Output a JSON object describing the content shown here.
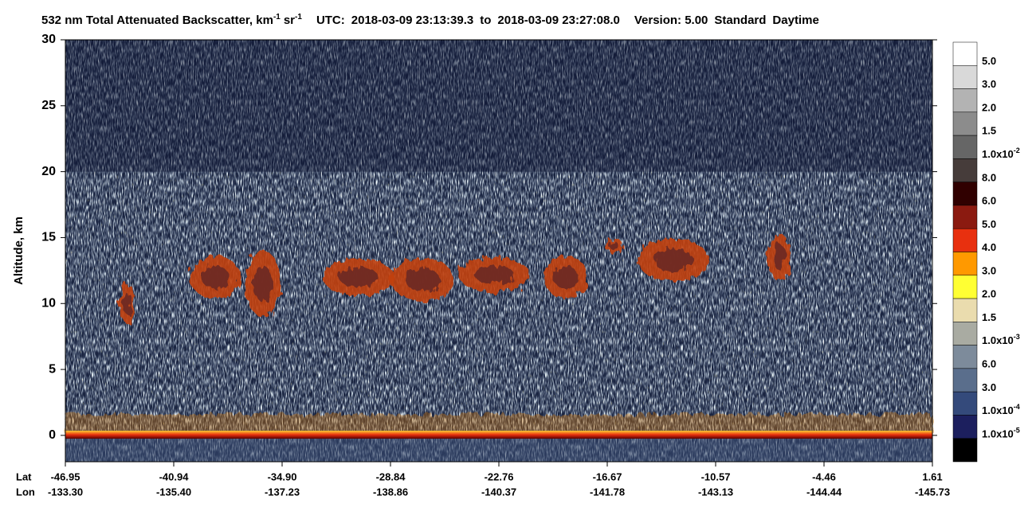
{
  "chart_data": {
    "type": "heatmap",
    "title": {
      "main": "532 nm Total Attenuated Backscatter, km",
      "exp1": "-1",
      "unit": "sr",
      "exp2": "-1",
      "utc_label": "UTC:",
      "start": "2018-03-09 23:13:39.3",
      "to": "to",
      "end": "2018-03-09 23:27:08.0",
      "version": "Version: 5.00",
      "mode": "Standard",
      "light": "Daytime"
    },
    "ylabel": "Altitude, km",
    "ylim": [
      -2,
      30
    ],
    "yticks": [
      0,
      5,
      10,
      15,
      20,
      25,
      30
    ],
    "x_row_labels": [
      "Lat",
      "Lon"
    ],
    "lat": [
      "-46.95",
      "-40.94",
      "-34.90",
      "-28.84",
      "-22.76",
      "-16.67",
      "-10.57",
      "-4.46",
      "1.61"
    ],
    "lon": [
      "-133.30",
      "-135.40",
      "-137.23",
      "-138.86",
      "-140.37",
      "-141.78",
      "-143.13",
      "-144.44",
      "-145.73"
    ],
    "colorbar": {
      "colors": [
        "#ffffff",
        "#d9d9d9",
        "#b3b3b3",
        "#8c8c8c",
        "#666666",
        "#463c3a",
        "#300000",
        "#8b1a10",
        "#e8300f",
        "#ff9900",
        "#ffff33",
        "#eadcae",
        "#a9aba2",
        "#7d8b9b",
        "#5a6e8c",
        "#344a7b",
        "#1c1f5e",
        "#000000"
      ],
      "labels": [
        {
          "base": "5.0"
        },
        {
          "base": "3.0"
        },
        {
          "base": "2.0"
        },
        {
          "base": "1.5"
        },
        {
          "base": "1.0x10",
          "sup": "-2"
        },
        {
          "base": "8.0"
        },
        {
          "base": "6.0"
        },
        {
          "base": "5.0"
        },
        {
          "base": "4.0"
        },
        {
          "base": "3.0"
        },
        {
          "base": "2.0"
        },
        {
          "base": "1.5"
        },
        {
          "base": "1.0x10",
          "sup": "-3"
        },
        {
          "base": "6.0"
        },
        {
          "base": "3.0"
        },
        {
          "base": "1.0x10",
          "sup": "-4"
        },
        {
          "base": "1.0x10",
          "sup": "-5"
        }
      ]
    }
  }
}
